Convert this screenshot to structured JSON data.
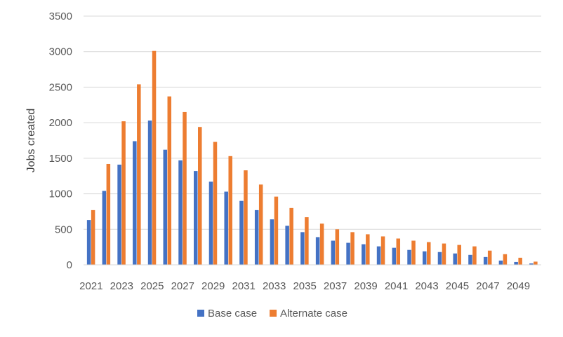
{
  "chart_data": {
    "type": "bar",
    "ylabel": "Jobs created",
    "xlabel": "",
    "ylim": [
      0,
      3500
    ],
    "yticks": [
      0,
      500,
      1000,
      1500,
      2000,
      2500,
      3000,
      3500
    ],
    "grid": true,
    "legend_position": "bottom",
    "categories": [
      "2021",
      "2022",
      "2023",
      "2024",
      "2025",
      "2026",
      "2027",
      "2028",
      "2029",
      "2030",
      "2031",
      "2032",
      "2033",
      "2034",
      "2035",
      "2036",
      "2037",
      "2038",
      "2039",
      "2040",
      "2041",
      "2042",
      "2043",
      "2044",
      "2045",
      "2046",
      "2047",
      "2048",
      "2049",
      "2050"
    ],
    "x_tick_labels": [
      "2021",
      "2023",
      "2025",
      "2027",
      "2029",
      "2031",
      "2033",
      "2035",
      "2037",
      "2039",
      "2041",
      "2043",
      "2045",
      "2047",
      "2049"
    ],
    "series": [
      {
        "name": "Base case",
        "color": "#4472C4",
        "values": [
          630,
          1040,
          1410,
          1740,
          2030,
          1620,
          1470,
          1320,
          1170,
          1030,
          900,
          770,
          640,
          550,
          460,
          390,
          340,
          310,
          290,
          260,
          240,
          210,
          190,
          180,
          160,
          140,
          110,
          60,
          40,
          20
        ]
      },
      {
        "name": "Alternate case",
        "color": "#ED7D31",
        "values": [
          770,
          1420,
          2020,
          2540,
          3010,
          2370,
          2150,
          1940,
          1730,
          1530,
          1330,
          1130,
          960,
          800,
          670,
          580,
          500,
          460,
          430,
          400,
          370,
          340,
          320,
          300,
          280,
          260,
          200,
          150,
          100,
          45
        ]
      }
    ]
  }
}
